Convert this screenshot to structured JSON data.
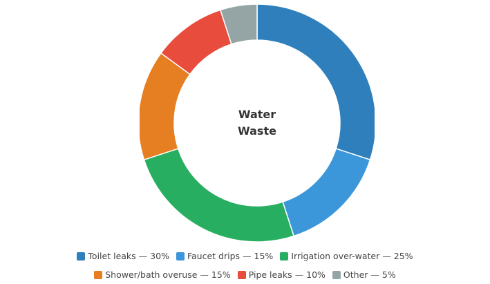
{
  "chart_data": {
    "type": "pie",
    "donut": true,
    "center_title_lines": [
      "Water",
      "Waste"
    ],
    "slices": [
      {
        "label": "Toilet leaks",
        "value": 30,
        "value_label": "30%",
        "color": "#2e7fbc"
      },
      {
        "label": "Faucet drips",
        "value": 15,
        "value_label": "15%",
        "color": "#3b97d9"
      },
      {
        "label": "Irrigation over-water",
        "value": 25,
        "value_label": "25%",
        "color": "#27ae60"
      },
      {
        "label": "Shower/bath overuse",
        "value": 15,
        "value_label": "15%",
        "color": "#e67e22"
      },
      {
        "label": "Pipe leaks",
        "value": 10,
        "value_label": "10%",
        "color": "#e74c3c"
      },
      {
        "label": "Other",
        "value": 5,
        "value_label": "5%",
        "color": "#95a5a6"
      }
    ],
    "legend_placement": "bottom",
    "separator": "—"
  }
}
